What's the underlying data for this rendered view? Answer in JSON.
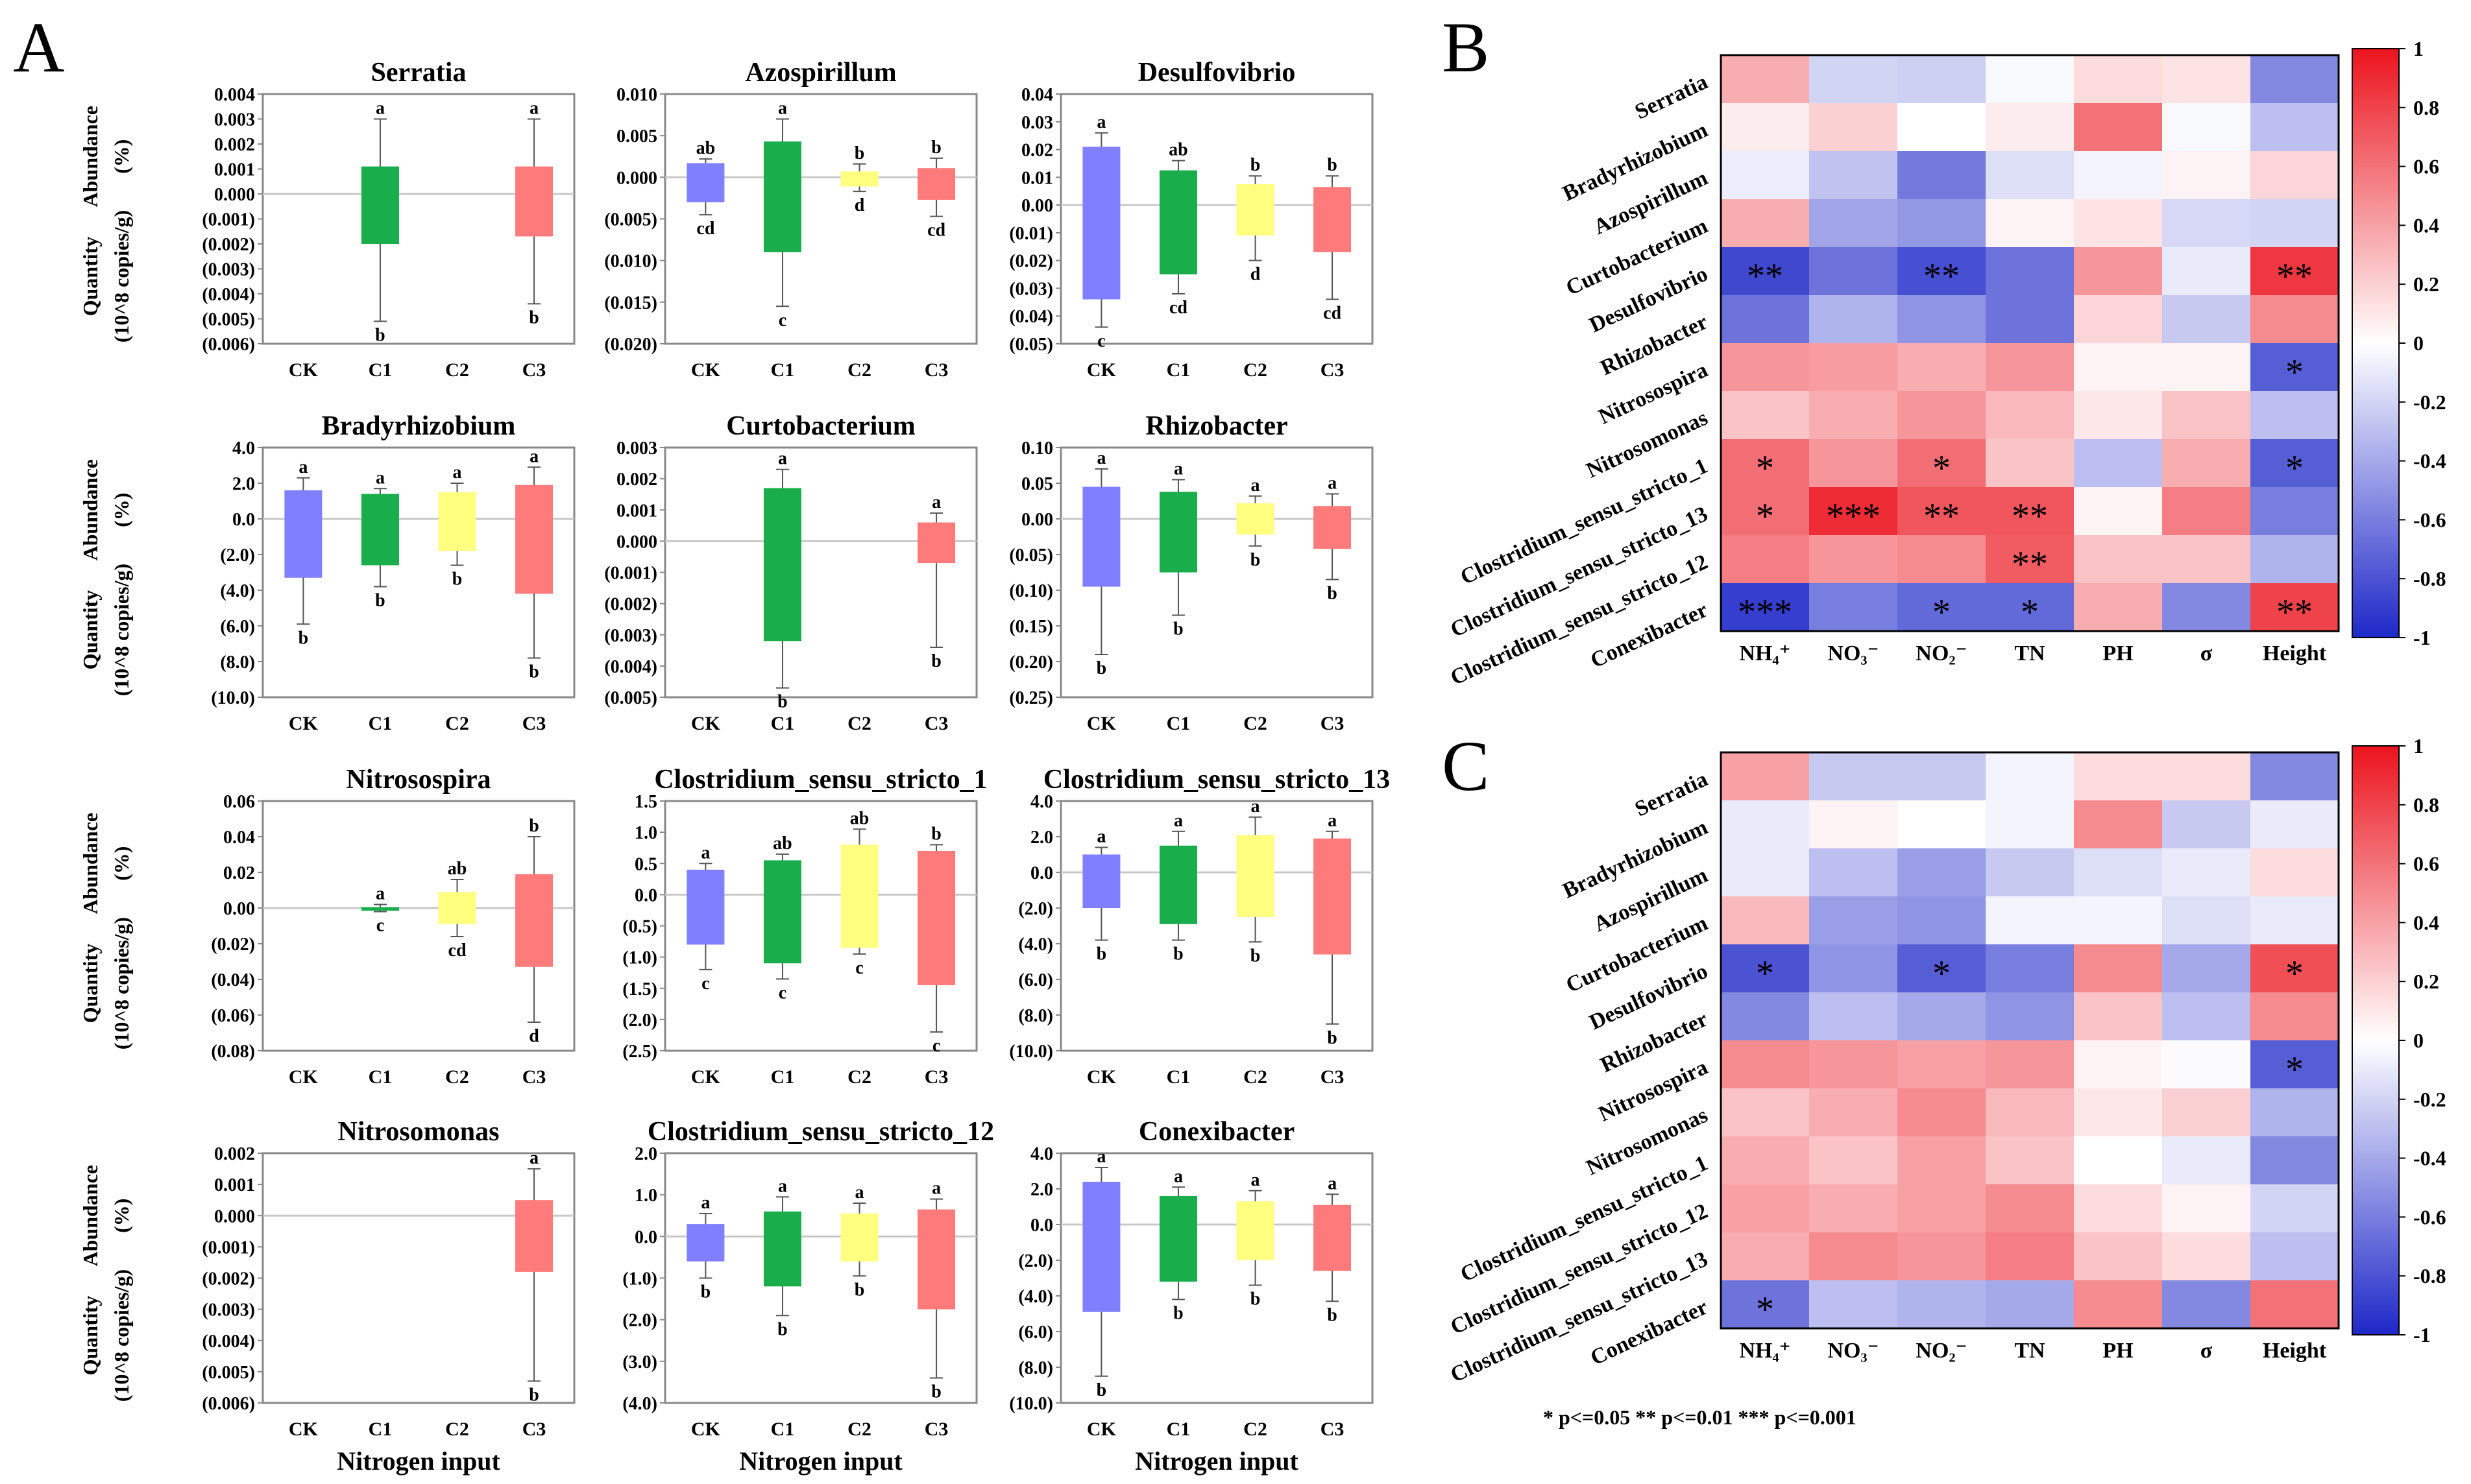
{
  "figure": {
    "panel_labels": [
      "A",
      "B",
      "C"
    ],
    "y_axis_label_line1": "Quantity",
    "y_axis_label_line2": "(10^8 copies/g)",
    "y_axis_label_right_line1": "Abundance",
    "y_axis_label_right_line2": "(%)",
    "x_axis_title": "Nitrogen input",
    "significance_note": "* p<=0.05  ** p<=0.01  *** p<=0.001"
  },
  "colors": {
    "CK": "#7f7fff",
    "C1": "#1aad4b",
    "C2": "#ffff80",
    "C3": "#ff7b7b"
  },
  "chart_data": [
    {
      "type": "box",
      "title": "Serratia",
      "categories": [
        "CK",
        "C1",
        "C2",
        "C3"
      ],
      "yticks": [
        "0.004",
        "0.003",
        "0.002",
        "0.001",
        "0.000",
        "(0.001)",
        "(0.002)",
        "(0.003)",
        "(0.004)",
        "(0.005)",
        "(0.006)"
      ],
      "ylim": [
        -0.006,
        0.004
      ],
      "boxes": [
        null,
        {
          "q1": -0.002,
          "q3": 0.0011,
          "min": -0.0051,
          "max": 0.003,
          "sig_top": "a",
          "sig_bottom": "b"
        },
        null,
        {
          "q1": -0.0017,
          "q3": 0.0011,
          "min": -0.0044,
          "max": 0.003,
          "sig_top": "a",
          "sig_bottom": "b"
        }
      ]
    },
    {
      "type": "box",
      "title": "Azospirillum",
      "categories": [
        "CK",
        "C1",
        "C2",
        "C3"
      ],
      "yticks": [
        "0.010",
        "0.005",
        "0.000",
        "(0.005)",
        "(0.010)",
        "(0.015)",
        "(0.020)"
      ],
      "ylim": [
        -0.02,
        0.01
      ],
      "boxes": [
        {
          "q1": -0.003,
          "q3": 0.0017,
          "min": -0.0045,
          "max": 0.0022,
          "sig_top": "ab",
          "sig_bottom": "cd"
        },
        {
          "q1": -0.009,
          "q3": 0.0043,
          "min": -0.0155,
          "max": 0.007,
          "sig_top": "a",
          "sig_bottom": "c"
        },
        {
          "q1": -0.0011,
          "q3": 0.0007,
          "min": -0.0017,
          "max": 0.0016,
          "sig_top": "b",
          "sig_bottom": "d"
        },
        {
          "q1": -0.0027,
          "q3": 0.0011,
          "min": -0.0047,
          "max": 0.0023,
          "sig_top": "b",
          "sig_bottom": "cd"
        }
      ]
    },
    {
      "type": "box",
      "title": "Desulfovibrio",
      "categories": [
        "CK",
        "C1",
        "C2",
        "C3"
      ],
      "yticks": [
        "0.04",
        "0.03",
        "0.02",
        "0.01",
        "0.00",
        "(0.01)",
        "(0.02)",
        "(0.03)",
        "(0.04)",
        "(0.05)"
      ],
      "ylim": [
        -0.05,
        0.04
      ],
      "boxes": [
        {
          "q1": -0.034,
          "q3": 0.021,
          "min": -0.044,
          "max": 0.026,
          "sig_top": "a",
          "sig_bottom": "c"
        },
        {
          "q1": -0.025,
          "q3": 0.0125,
          "min": -0.032,
          "max": 0.016,
          "sig_top": "ab",
          "sig_bottom": "cd"
        },
        {
          "q1": -0.011,
          "q3": 0.0075,
          "min": -0.02,
          "max": 0.0105,
          "sig_top": "b",
          "sig_bottom": "d"
        },
        {
          "q1": -0.017,
          "q3": 0.0065,
          "min": -0.034,
          "max": 0.0105,
          "sig_top": "b",
          "sig_bottom": "cd"
        }
      ]
    },
    {
      "type": "box",
      "title": "Bradyrhizobium",
      "categories": [
        "CK",
        "C1",
        "C2",
        "C3"
      ],
      "yticks": [
        "4.0",
        "2.0",
        "0.0",
        "(2.0)",
        "(4.0)",
        "(6.0)",
        "(8.0)",
        "(10.0)"
      ],
      "ylim": [
        -10,
        4
      ],
      "boxes": [
        {
          "q1": -3.3,
          "q3": 1.6,
          "min": -5.9,
          "max": 2.3,
          "sig_top": "a",
          "sig_bottom": "b"
        },
        {
          "q1": -2.6,
          "q3": 1.4,
          "min": -3.8,
          "max": 1.7,
          "sig_top": "a",
          "sig_bottom": "b"
        },
        {
          "q1": -1.8,
          "q3": 1.5,
          "min": -2.6,
          "max": 2.0,
          "sig_top": "a",
          "sig_bottom": "b"
        },
        {
          "q1": -4.2,
          "q3": 1.9,
          "min": -7.8,
          "max": 2.9,
          "sig_top": "a",
          "sig_bottom": "b"
        }
      ]
    },
    {
      "type": "box",
      "title": "Curtobacterium",
      "categories": [
        "CK",
        "C1",
        "C2",
        "C3"
      ],
      "yticks": [
        "0.003",
        "0.002",
        "0.001",
        "0.000",
        "(0.001)",
        "(0.002)",
        "(0.003)",
        "(0.004)",
        "(0.005)"
      ],
      "ylim": [
        -0.005,
        0.003
      ],
      "boxes": [
        null,
        {
          "q1": -0.0032,
          "q3": 0.0017,
          "min": -0.0047,
          "max": 0.0023,
          "sig_top": "a",
          "sig_bottom": "b"
        },
        null,
        {
          "q1": -0.0007,
          "q3": 0.0006,
          "min": -0.0034,
          "max": 0.0009,
          "sig_top": "a",
          "sig_bottom": "b"
        }
      ]
    },
    {
      "type": "box",
      "title": "Rhizobacter",
      "categories": [
        "CK",
        "C1",
        "C2",
        "C3"
      ],
      "yticks": [
        "0.10",
        "0.05",
        "0.00",
        "(0.05)",
        "(0.10)",
        "(0.15)",
        "(0.20)",
        "(0.25)"
      ],
      "ylim": [
        -0.25,
        0.1
      ],
      "boxes": [
        {
          "q1": -0.095,
          "q3": 0.045,
          "min": -0.19,
          "max": 0.07,
          "sig_top": "a",
          "sig_bottom": "b"
        },
        {
          "q1": -0.075,
          "q3": 0.038,
          "min": -0.135,
          "max": 0.055,
          "sig_top": "a",
          "sig_bottom": "b"
        },
        {
          "q1": -0.022,
          "q3": 0.022,
          "min": -0.038,
          "max": 0.032,
          "sig_top": "a",
          "sig_bottom": "b"
        },
        {
          "q1": -0.042,
          "q3": 0.018,
          "min": -0.085,
          "max": 0.035,
          "sig_top": "a",
          "sig_bottom": "b"
        }
      ]
    },
    {
      "type": "box",
      "title": "Nitrosospira",
      "categories": [
        "CK",
        "C1",
        "C2",
        "C3"
      ],
      "yticks": [
        "0.06",
        "0.04",
        "0.02",
        "0.00",
        "(0.02)",
        "(0.04)",
        "(0.06)",
        "(0.08)"
      ],
      "ylim": [
        -0.08,
        0.06
      ],
      "boxes": [
        null,
        {
          "q1": -0.0015,
          "q3": 0.0005,
          "min": -0.002,
          "max": 0.002,
          "sig_top": "a",
          "sig_bottom": "c"
        },
        {
          "q1": -0.009,
          "q3": 0.009,
          "min": -0.016,
          "max": 0.016,
          "sig_top": "ab",
          "sig_bottom": "cd"
        },
        {
          "q1": -0.033,
          "q3": 0.019,
          "min": -0.064,
          "max": 0.04,
          "sig_top": "b",
          "sig_bottom": "d"
        }
      ]
    },
    {
      "type": "box",
      "title": "Clostridium_sensu_stricto_1",
      "categories": [
        "CK",
        "C1",
        "C2",
        "C3"
      ],
      "yticks": [
        "1.5",
        "1.0",
        "0.5",
        "0.0",
        "(0.5)",
        "(1.0)",
        "(1.5)",
        "(2.0)",
        "(2.5)"
      ],
      "ylim": [
        -2.5,
        1.5
      ],
      "boxes": [
        {
          "q1": -0.8,
          "q3": 0.4,
          "min": -1.2,
          "max": 0.5,
          "sig_top": "a",
          "sig_bottom": "c"
        },
        {
          "q1": -1.1,
          "q3": 0.55,
          "min": -1.35,
          "max": 0.65,
          "sig_top": "ab",
          "sig_bottom": "c"
        },
        {
          "q1": -0.85,
          "q3": 0.8,
          "min": -0.95,
          "max": 1.05,
          "sig_top": "ab",
          "sig_bottom": "c"
        },
        {
          "q1": -1.45,
          "q3": 0.7,
          "min": -2.2,
          "max": 0.8,
          "sig_top": "b",
          "sig_bottom": "c"
        }
      ]
    },
    {
      "type": "box",
      "title": "Clostridium_sensu_stricto_13",
      "categories": [
        "CK",
        "C1",
        "C2",
        "C3"
      ],
      "yticks": [
        "4.0",
        "2.0",
        "0.0",
        "(2.0)",
        "(4.0)",
        "(6.0)",
        "(8.0)",
        "(10.0)"
      ],
      "ylim": [
        -10,
        4
      ],
      "boxes": [
        {
          "q1": -2.0,
          "q3": 1.0,
          "min": -3.8,
          "max": 1.4,
          "sig_top": "a",
          "sig_bottom": "b"
        },
        {
          "q1": -2.9,
          "q3": 1.5,
          "min": -3.8,
          "max": 2.3,
          "sig_top": "a",
          "sig_bottom": "b"
        },
        {
          "q1": -2.5,
          "q3": 2.1,
          "min": -3.9,
          "max": 3.1,
          "sig_top": "a",
          "sig_bottom": "b"
        },
        {
          "q1": -4.6,
          "q3": 1.9,
          "min": -8.5,
          "max": 2.3,
          "sig_top": "a",
          "sig_bottom": "b"
        }
      ]
    },
    {
      "type": "box",
      "title": "Nitrosomonas",
      "categories": [
        "CK",
        "C1",
        "C2",
        "C3"
      ],
      "yticks": [
        "0.002",
        "0.001",
        "0.000",
        "(0.001)",
        "(0.002)",
        "(0.003)",
        "(0.004)",
        "(0.005)",
        "(0.006)"
      ],
      "ylim": [
        -0.006,
        0.002
      ],
      "boxes": [
        null,
        null,
        null,
        {
          "q1": -0.0018,
          "q3": 0.0005,
          "min": -0.0053,
          "max": 0.0015,
          "sig_top": "a",
          "sig_bottom": "b"
        }
      ]
    },
    {
      "type": "box",
      "title": "Clostridium_sensu_stricto_12",
      "categories": [
        "CK",
        "C1",
        "C2",
        "C3"
      ],
      "yticks": [
        "2.0",
        "1.0",
        "0.0",
        "(1.0)",
        "(2.0)",
        "(3.0)",
        "(4.0)"
      ],
      "ylim": [
        -4,
        2
      ],
      "boxes": [
        {
          "q1": -0.6,
          "q3": 0.3,
          "min": -1.0,
          "max": 0.55,
          "sig_top": "a",
          "sig_bottom": "b"
        },
        {
          "q1": -1.2,
          "q3": 0.6,
          "min": -1.9,
          "max": 0.95,
          "sig_top": "a",
          "sig_bottom": "b"
        },
        {
          "q1": -0.6,
          "q3": 0.55,
          "min": -0.95,
          "max": 0.8,
          "sig_top": "a",
          "sig_bottom": "b"
        },
        {
          "q1": -1.75,
          "q3": 0.65,
          "min": -3.4,
          "max": 0.9,
          "sig_top": "a",
          "sig_bottom": "b"
        }
      ]
    },
    {
      "type": "box",
      "title": "Conexibacter",
      "categories": [
        "CK",
        "C1",
        "C2",
        "C3"
      ],
      "yticks": [
        "4.0",
        "2.0",
        "0.0",
        "(2.0)",
        "(4.0)",
        "(6.0)",
        "(8.0)",
        "(10.0)"
      ],
      "ylim": [
        -10,
        4
      ],
      "boxes": [
        {
          "q1": -4.9,
          "q3": 2.4,
          "min": -8.5,
          "max": 3.2,
          "sig_top": "a",
          "sig_bottom": "b"
        },
        {
          "q1": -3.2,
          "q3": 1.6,
          "min": -4.2,
          "max": 2.1,
          "sig_top": "a",
          "sig_bottom": "b"
        },
        {
          "q1": -2.0,
          "q3": 1.3,
          "min": -3.4,
          "max": 1.9,
          "sig_top": "a",
          "sig_bottom": "b"
        },
        {
          "q1": -2.6,
          "q3": 1.1,
          "min": -4.3,
          "max": 1.7,
          "sig_top": "a",
          "sig_bottom": "b"
        }
      ]
    },
    {
      "type": "heatmap",
      "panel": "B",
      "rows": [
        "Serratia",
        "Bradyrhizobium",
        "Azospirillum",
        "Curtobacterium",
        "Desulfovibrio",
        "Rhizobacter",
        "Nitrosospira",
        "Nitrosomonas",
        "Clostridium_sensu_stricto_1",
        "Clostridium_sensu_stricto_13",
        "Clostridium_sensu_stricto_12",
        "Conexibacter"
      ],
      "columns": [
        "NH₄⁺",
        "NO₃⁻",
        "NO₂⁻",
        "TN",
        "PH",
        "σ",
        "Height"
      ],
      "colorbar_ticks": [
        "1",
        "0.8",
        "0.6",
        "0.4",
        "0.2",
        "0",
        "-0.2",
        "-0.4",
        "-0.6",
        "-0.8",
        "-1"
      ],
      "values": [
        [
          0.35,
          -0.2,
          -0.22,
          -0.03,
          0.15,
          0.12,
          -0.55
        ],
        [
          0.08,
          0.2,
          0.0,
          0.08,
          0.6,
          -0.03,
          -0.3
        ],
        [
          -0.08,
          -0.28,
          -0.62,
          -0.15,
          -0.05,
          0.05,
          0.18
        ],
        [
          0.35,
          -0.42,
          -0.48,
          0.05,
          0.12,
          -0.18,
          -0.2
        ],
        [
          -0.85,
          -0.65,
          -0.82,
          -0.65,
          0.45,
          -0.1,
          0.85
        ],
        [
          -0.65,
          -0.35,
          -0.5,
          -0.65,
          0.18,
          -0.25,
          0.5
        ],
        [
          0.45,
          0.42,
          0.35,
          0.45,
          0.05,
          0.05,
          -0.75
        ],
        [
          0.25,
          0.35,
          0.45,
          0.3,
          0.1,
          0.25,
          -0.3
        ],
        [
          0.62,
          0.45,
          0.62,
          0.25,
          -0.3,
          0.35,
          -0.75
        ],
        [
          0.62,
          0.9,
          0.72,
          0.72,
          0.05,
          0.55,
          -0.6
        ],
        [
          0.55,
          0.45,
          0.5,
          0.7,
          0.25,
          0.25,
          -0.35
        ],
        [
          -0.9,
          -0.6,
          -0.7,
          -0.7,
          0.35,
          -0.55,
          0.8
        ]
      ],
      "stars": [
        [
          "",
          "",
          "",
          "",
          "",
          "",
          ""
        ],
        [
          "",
          "",
          "",
          "",
          "",
          "",
          ""
        ],
        [
          "",
          "",
          "",
          "",
          "",
          "",
          ""
        ],
        [
          "",
          "",
          "",
          "",
          "",
          "",
          ""
        ],
        [
          "**",
          "",
          "**",
          "",
          "",
          "",
          "**"
        ],
        [
          "",
          "",
          "",
          "",
          "",
          "",
          ""
        ],
        [
          "",
          "",
          "",
          "",
          "",
          "",
          "*"
        ],
        [
          "",
          "",
          "",
          "",
          "",
          "",
          ""
        ],
        [
          "*",
          "",
          "*",
          "",
          "",
          "",
          "*"
        ],
        [
          "*",
          "***",
          "**",
          "**",
          "",
          "",
          ""
        ],
        [
          "",
          "",
          "",
          "**",
          "",
          "",
          ""
        ],
        [
          "***",
          "",
          "*",
          "*",
          "",
          "",
          "**"
        ]
      ]
    },
    {
      "type": "heatmap",
      "panel": "C",
      "rows": [
        "Serratia",
        "Bradyrhizobium",
        "Azospirillum",
        "Curtobacterium",
        "Desulfovibrio",
        "Rhizobacter",
        "Nitrosospira",
        "Nitrosomonas",
        "Clostridium_sensu_stricto_1",
        "Clostridium_sensu_stricto_12",
        "Clostridium_sensu_stricto_13",
        "Conexibacter"
      ],
      "columns": [
        "NH₄⁺",
        "NO₃⁻",
        "NO₂⁻",
        "TN",
        "PH",
        "σ",
        "Height"
      ],
      "colorbar_ticks": [
        "1",
        "0.8",
        "0.6",
        "0.4",
        "0.2",
        "0",
        "-0.2",
        "-0.4",
        "-0.6",
        "-0.8",
        "-1"
      ],
      "values": [
        [
          0.4,
          -0.25,
          -0.25,
          -0.05,
          0.15,
          0.15,
          -0.55
        ],
        [
          -0.1,
          0.05,
          0.0,
          -0.05,
          0.5,
          -0.25,
          -0.1
        ],
        [
          -0.1,
          -0.3,
          -0.45,
          -0.25,
          -0.15,
          -0.1,
          0.15
        ],
        [
          0.3,
          -0.45,
          -0.5,
          -0.05,
          -0.05,
          -0.15,
          -0.1
        ],
        [
          -0.8,
          -0.5,
          -0.75,
          -0.6,
          0.5,
          -0.4,
          0.75
        ],
        [
          -0.55,
          -0.3,
          -0.4,
          -0.5,
          0.25,
          -0.3,
          0.5
        ],
        [
          0.5,
          0.45,
          0.4,
          0.45,
          0.05,
          -0.02,
          -0.75
        ],
        [
          0.25,
          0.35,
          0.5,
          0.3,
          0.1,
          0.2,
          -0.35
        ],
        [
          0.35,
          0.25,
          0.4,
          0.25,
          0.0,
          -0.1,
          -0.55
        ],
        [
          0.4,
          0.35,
          0.4,
          0.5,
          0.15,
          0.05,
          -0.2
        ],
        [
          0.35,
          0.5,
          0.45,
          0.55,
          0.25,
          0.15,
          -0.3
        ],
        [
          -0.65,
          -0.3,
          -0.35,
          -0.4,
          0.5,
          -0.55,
          0.6
        ]
      ],
      "stars": [
        [
          "",
          "",
          "",
          "",
          "",
          "",
          ""
        ],
        [
          "",
          "",
          "",
          "",
          "",
          "",
          ""
        ],
        [
          "",
          "",
          "",
          "",
          "",
          "",
          ""
        ],
        [
          "",
          "",
          "",
          "",
          "",
          "",
          ""
        ],
        [
          "*",
          "",
          "*",
          "",
          "",
          "",
          "*"
        ],
        [
          "",
          "",
          "",
          "",
          "",
          "",
          ""
        ],
        [
          "",
          "",
          "",
          "",
          "",
          "",
          "*"
        ],
        [
          "",
          "",
          "",
          "",
          "",
          "",
          ""
        ],
        [
          "",
          "",
          "",
          "",
          "",
          "",
          ""
        ],
        [
          "",
          "",
          "",
          "",
          "",
          "",
          ""
        ],
        [
          "",
          "",
          "",
          "",
          "",
          "",
          ""
        ],
        [
          "*",
          "",
          "",
          "",
          "",
          "",
          ""
        ]
      ]
    }
  ]
}
